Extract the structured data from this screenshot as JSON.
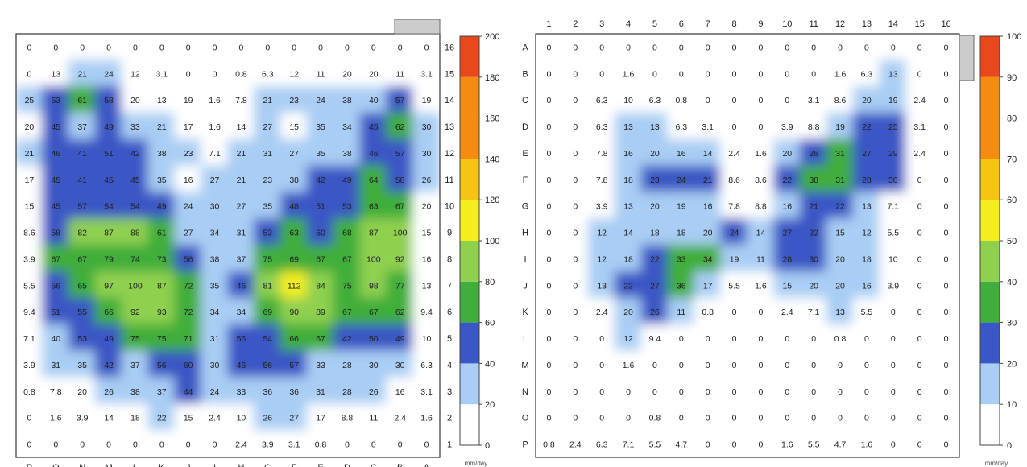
{
  "palette": {
    "white": "#ffffff",
    "light_blue": "#a9cdf4",
    "blue": "#6fa4ec",
    "dark_blue": "#3b56c5",
    "green": "#3fae3a",
    "light_green": "#8fd04f",
    "yellow": "#f4ee1e",
    "gold": "#f5c415",
    "orange": "#f58c12",
    "red": "#e8481a"
  },
  "chart_data": [
    {
      "type": "heatmap",
      "title": "",
      "row_labels": [
        "16",
        "15",
        "14",
        "13",
        "12",
        "11",
        "10",
        "9",
        "8",
        "7",
        "6",
        "5",
        "4",
        "3",
        "2",
        "1"
      ],
      "col_labels": [
        "P",
        "O",
        "N",
        "M",
        "L",
        "K",
        "J",
        "I",
        "H",
        "G",
        "F",
        "E",
        "D",
        "C",
        "B",
        "A"
      ],
      "values": [
        [
          0,
          0,
          0,
          0,
          0,
          0,
          0,
          0,
          0,
          0,
          0,
          0,
          0,
          0,
          0,
          0
        ],
        [
          0,
          13,
          21,
          24,
          12,
          3.1,
          0,
          0,
          0.8,
          6.3,
          12,
          11,
          20,
          20,
          11,
          3.1
        ],
        [
          25,
          53,
          61,
          58,
          20,
          13,
          19,
          1.6,
          7.8,
          21,
          23,
          24,
          38,
          40,
          57,
          19
        ],
        [
          20,
          45,
          37,
          49,
          33,
          21,
          17,
          1.6,
          14,
          27,
          15,
          35,
          34,
          45,
          62,
          30
        ],
        [
          21,
          46,
          41,
          51,
          42,
          38,
          23,
          7.1,
          21,
          31,
          27,
          35,
          38,
          46,
          57,
          30
        ],
        [
          17,
          45,
          41,
          45,
          45,
          35,
          16,
          27,
          21,
          23,
          38,
          42,
          49,
          64,
          58,
          26
        ],
        [
          15,
          45,
          57,
          54,
          54,
          49,
          24,
          30,
          27,
          35,
          48,
          51,
          53,
          63,
          67,
          20
        ],
        [
          8.6,
          58,
          82,
          87,
          88,
          61,
          27,
          34,
          31,
          53,
          63,
          60,
          68,
          87,
          100,
          15
        ],
        [
          3.9,
          67,
          67,
          79,
          74,
          73,
          56,
          38,
          37,
          75,
          69,
          67,
          67,
          100,
          92,
          16
        ],
        [
          5.5,
          56,
          65,
          97,
          100,
          87,
          72,
          35,
          46,
          81,
          112,
          84,
          75,
          98,
          77,
          13
        ],
        [
          9.4,
          51,
          55,
          66,
          92,
          93,
          72,
          34,
          34,
          69,
          90,
          89,
          67,
          67,
          62,
          9.4
        ],
        [
          7.1,
          40,
          53,
          49,
          75,
          75,
          71,
          31,
          56,
          54,
          66,
          67,
          42,
          50,
          49,
          10
        ],
        [
          3.9,
          31,
          35,
          42,
          37,
          56,
          60,
          30,
          46,
          56,
          57,
          33,
          28,
          30,
          30,
          6.3
        ],
        [
          0.8,
          7.8,
          20,
          26,
          38,
          37,
          44,
          24,
          33,
          36,
          36,
          31,
          28,
          26,
          16,
          3.1
        ],
        [
          0,
          1.6,
          3.9,
          14,
          18,
          22,
          15,
          2.4,
          10,
          26,
          27,
          17,
          8.8,
          11,
          2.4,
          1.6
        ],
        [
          0,
          0,
          0,
          0,
          0,
          0,
          0,
          0,
          2.4,
          3.9,
          3.1,
          0.8,
          0,
          0,
          0,
          0
        ]
      ],
      "colorbar": {
        "ticks": [
          0,
          20,
          40,
          60,
          80,
          100,
          120,
          140,
          160,
          180,
          200
        ],
        "tick_labels": [
          "0",
          "20",
          "40",
          "60",
          "80",
          "100",
          "120",
          "140",
          "160",
          "180",
          "200"
        ],
        "units": "mm/day",
        "bands": [
          "white",
          "light_blue",
          "dark_blue",
          "green",
          "light_green",
          "yellow",
          "gold",
          "orange",
          "orange",
          "red"
        ]
      }
    },
    {
      "type": "heatmap",
      "title": "",
      "row_labels": [
        "A",
        "B",
        "C",
        "D",
        "E",
        "F",
        "G",
        "H",
        "I",
        "J",
        "K",
        "L",
        "M",
        "N",
        "O",
        "P"
      ],
      "col_labels": [
        "1",
        "2",
        "3",
        "4",
        "5",
        "6",
        "7",
        "8",
        "9",
        "10",
        "11",
        "12",
        "13",
        "14",
        "15",
        "16"
      ],
      "values": [
        [
          0,
          0,
          0,
          0,
          0,
          0,
          0,
          0,
          0,
          0,
          0,
          0,
          0,
          0,
          0,
          0
        ],
        [
          0,
          0,
          0,
          1.6,
          0,
          0,
          0,
          0,
          0,
          0,
          0,
          1.6,
          6.3,
          13,
          0,
          0
        ],
        [
          0,
          0,
          6.3,
          10,
          6.3,
          0.8,
          0,
          0,
          0,
          0,
          3.1,
          8.6,
          20,
          19,
          2.4,
          0
        ],
        [
          0,
          0,
          6.3,
          13,
          13,
          6.3,
          3.1,
          0,
          0,
          3.9,
          8.8,
          19,
          22,
          25,
          3.1,
          0
        ],
        [
          0,
          0,
          7.8,
          16,
          20,
          16,
          14,
          2.4,
          1.6,
          20,
          26,
          31,
          27,
          29,
          2.4,
          0
        ],
        [
          0,
          0,
          7.8,
          18,
          23,
          24,
          21,
          8.6,
          8.6,
          22,
          38,
          31,
          28,
          30,
          0,
          0
        ],
        [
          0,
          0,
          3.9,
          13,
          20,
          19,
          16,
          7.8,
          8.8,
          16,
          21,
          22,
          13,
          7.1,
          0,
          0
        ],
        [
          0,
          0,
          12,
          14,
          18,
          18,
          20,
          24,
          14,
          27,
          22,
          15,
          12,
          5.5,
          0,
          0
        ],
        [
          0,
          0,
          12,
          18,
          22,
          33,
          34,
          19,
          11,
          28,
          30,
          20,
          18,
          10,
          0,
          0
        ],
        [
          0,
          0,
          13,
          22,
          27,
          36,
          17,
          5.5,
          1.6,
          15,
          20,
          20,
          16,
          3.9,
          0,
          0
        ],
        [
          0,
          0,
          2.4,
          20,
          26,
          11,
          0.8,
          0,
          0,
          2.4,
          7.1,
          13,
          5.5,
          0,
          0,
          0
        ],
        [
          0,
          0,
          0,
          12,
          9.4,
          0,
          0,
          0,
          0,
          0,
          0,
          0.8,
          0,
          0,
          0,
          0
        ],
        [
          0,
          0,
          0,
          1.6,
          0,
          0,
          0,
          0,
          0,
          0,
          0,
          0,
          0,
          0,
          0,
          0
        ],
        [
          0,
          0,
          0,
          0,
          0,
          0,
          0,
          0,
          0,
          0,
          0,
          0,
          0,
          0,
          0,
          0
        ],
        [
          0,
          0,
          0,
          0,
          0.8,
          0,
          0,
          0,
          0,
          0,
          0,
          0,
          0,
          0,
          0,
          0
        ],
        [
          0.8,
          2.4,
          6.3,
          7.1,
          5.5,
          4.7,
          0,
          0,
          0,
          1.6,
          5.5,
          4.7,
          1.6,
          0,
          0,
          0
        ]
      ],
      "colorbar": {
        "ticks": [
          0,
          10,
          20,
          30,
          40,
          50,
          60,
          70,
          80,
          90,
          100
        ],
        "tick_labels": [
          "0",
          "10",
          "20",
          "30",
          "40",
          "50",
          "60",
          "70",
          "80",
          "90",
          "100"
        ],
        "units": "mm/day",
        "bands": [
          "white",
          "light_blue",
          "dark_blue",
          "green",
          "light_green",
          "yellow",
          "gold",
          "orange",
          "orange",
          "red"
        ]
      }
    }
  ]
}
